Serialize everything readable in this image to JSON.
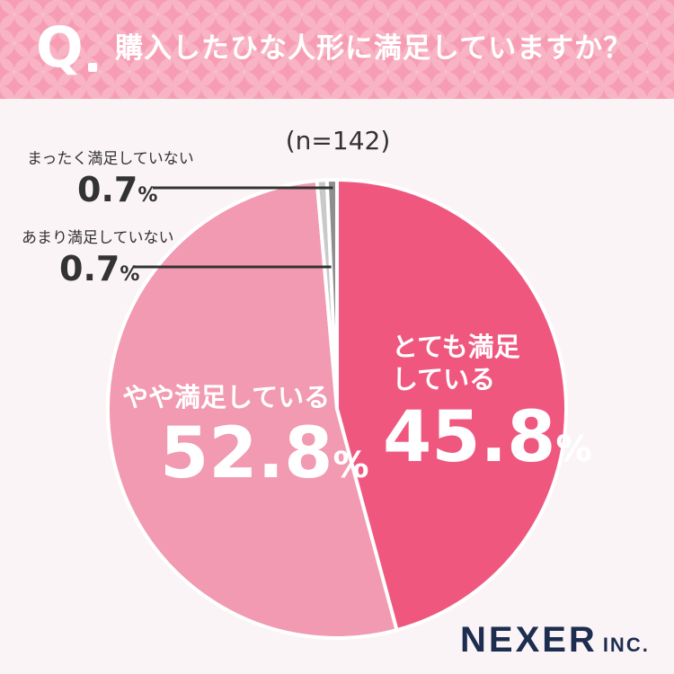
{
  "header": {
    "q_mark": "Q",
    "question": "購入したひな人形に満足していますか？"
  },
  "chart_data": {
    "type": "pie",
    "sample_label": "(n=142)",
    "start": "12 o'clock, clockwise",
    "slices": [
      {
        "label_lines": [
          "とても満足",
          "している"
        ],
        "value": 45.8,
        "value_text": "45.8",
        "unit": "%",
        "color": "#f0577f"
      },
      {
        "label_lines": [
          "やや満足している"
        ],
        "value": 52.8,
        "value_text": "52.8",
        "unit": "%",
        "color": "#f19ab1"
      },
      {
        "label_lines": [
          "あまり満足していない"
        ],
        "value": 0.7,
        "value_text": "0.7",
        "unit": "%",
        "color": "#c9c9c9"
      },
      {
        "label_lines": [
          "まったく満足していない"
        ],
        "value": 0.7,
        "value_text": "0.7",
        "unit": "%",
        "color": "#8e8e8e"
      }
    ]
  },
  "logo": {
    "main": "NEXER",
    "sub": "INC."
  }
}
